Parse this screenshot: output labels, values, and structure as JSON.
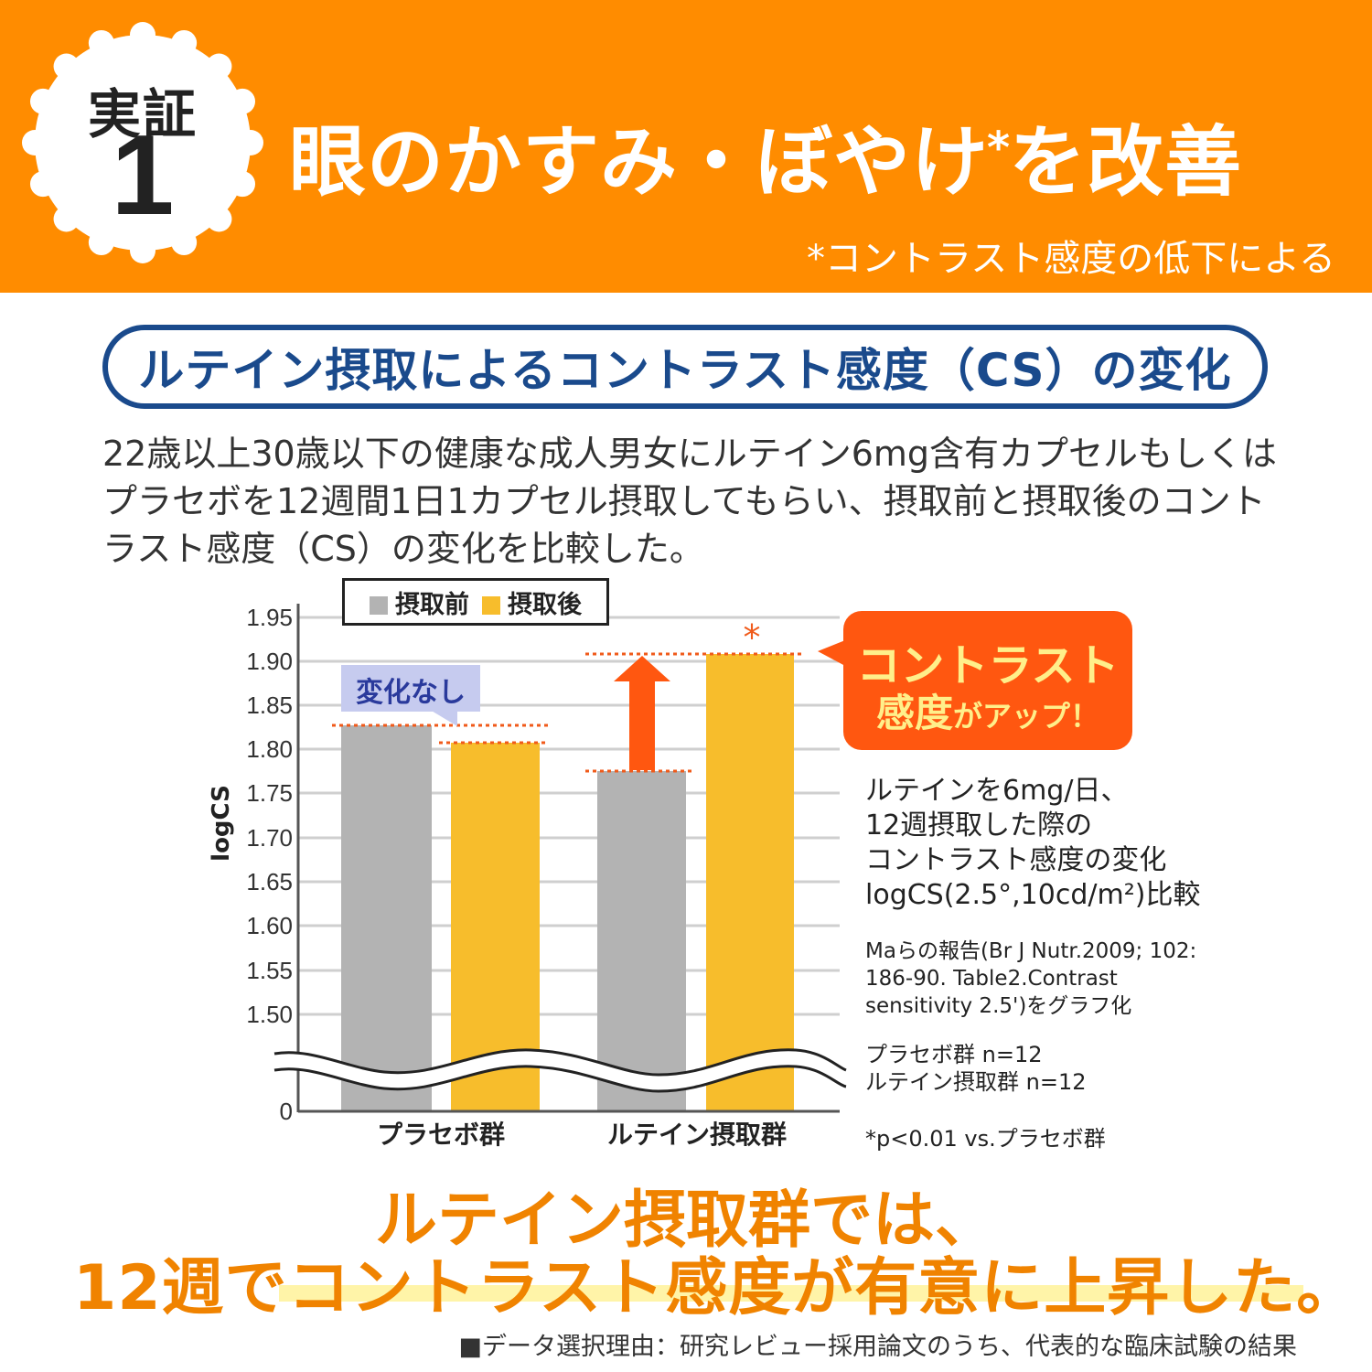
{
  "header": {
    "badge_label": "実証",
    "badge_number": "1",
    "headline_part1": "眼のかすみ・ぼやけ",
    "headline_mark": "*",
    "headline_part2": "を改善",
    "footnote": "*コントラスト感度の低下による",
    "background_color": "#ff8c00"
  },
  "section": {
    "title": "ルテイン摂取によるコントラスト感度（CS）の変化",
    "title_color": "#1a4a8c",
    "description": "22歳以上30歳以下の健康な成人男女にルテイン6mg含有カプセルもしくはプラセボを12週間1日1カプセル摂取してもらい、摂取前と摂取後のコントラスト感度（CS）の変化を比較した。"
  },
  "chart_data": {
    "type": "bar",
    "title": "",
    "xlabel": "",
    "ylabel": "logCS",
    "categories": [
      "プラセボ群",
      "ルテイン摂取群"
    ],
    "series": [
      {
        "name": "摂取前",
        "color": "#b3b3b3",
        "values": [
          1.827,
          1.775
        ]
      },
      {
        "name": "摂取後",
        "color": "#f7bd2c",
        "values": [
          1.807,
          1.908
        ]
      }
    ],
    "y_ticks": [
      "1.95",
      "1.90",
      "1.85",
      "1.80",
      "1.75",
      "1.70",
      "1.65",
      "1.60",
      "1.55",
      "1.50",
      "0"
    ],
    "ylim": [
      1.5,
      1.95
    ],
    "axis_break": "between 0 and 1.50",
    "grid": true,
    "legend_position": "top-left inside",
    "annotations": [
      {
        "text": "変化なし",
        "target": "プラセボ群"
      },
      {
        "text": "*",
        "target": "ルテイン摂取群 摂取後"
      },
      {
        "text": "コントラスト感度がアップ！",
        "target": "ルテイン摂取群"
      }
    ]
  },
  "chart_labels": {
    "legend_before": "摂取前",
    "legend_after": "摂取後",
    "no_change": "変化なし",
    "significance_mark": "*",
    "callout_line1": "コントラスト",
    "callout_line2a": "感度",
    "callout_line2b": "がアップ！",
    "side_note_lines": [
      "ルテインを6mg/日、",
      "12週摂取した際の",
      "コントラスト感度の変化",
      "logCS(2.5°,10cd/m²)比較"
    ],
    "source_lines": [
      "Maらの報告(Br J Nutr.2009; 102:",
      "186-90. Table2.Contrast",
      "sensitivity 2.5')をグラフ化"
    ],
    "n_lines": [
      "プラセボ群 n=12",
      "ルテイン摂取群 n=12"
    ],
    "p_note": "*p<0.01 vs.プラセボ群"
  },
  "conclusion": {
    "line1": "ルテイン摂取群では、",
    "line2": "12週でコントラスト感度が有意に上昇した。",
    "color": "#f08300"
  },
  "footer": {
    "note": "■データ選択理由：研究レビュー採用論文のうち、代表的な臨床試験の結果"
  }
}
